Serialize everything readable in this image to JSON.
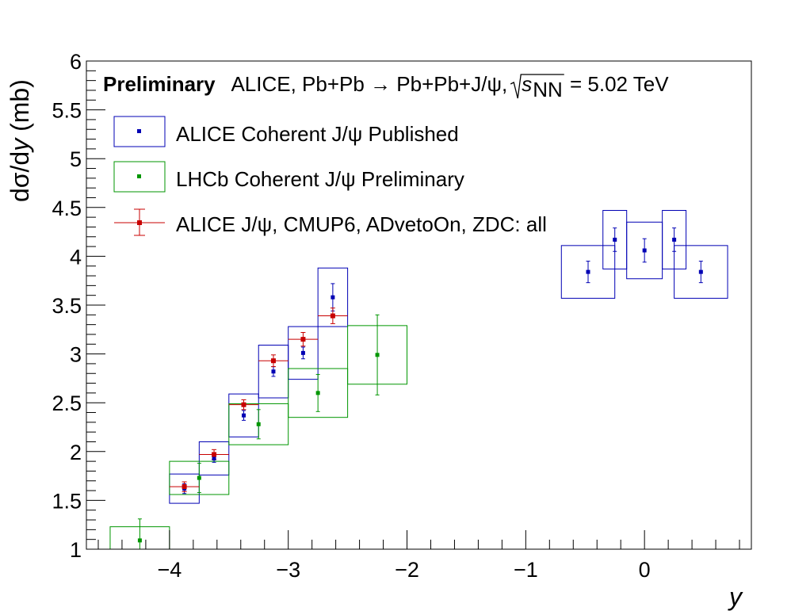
{
  "chart_data": {
    "type": "scatter",
    "header": {
      "bold": "Preliminary",
      "prefix": "ALICE, Pb+Pb → Pb+Pb+J/ψ, ",
      "sqrt_var": "s",
      "sqrt_sub": "NN",
      "suffix": " = 5.02 TeV"
    },
    "xlabel": "y",
    "ylabel_prefix": "dσ/d",
    "ylabel_var": "y",
    "ylabel_suffix": " (mb)",
    "xlim": [
      -4.7,
      0.9
    ],
    "ylim": [
      1,
      6
    ],
    "x_ticks": [
      -4,
      -3,
      -2,
      -1,
      0
    ],
    "x_tick_labels": [
      "−4",
      "−3",
      "−2",
      "−1",
      "0"
    ],
    "y_ticks": [
      1,
      1.5,
      2,
      2.5,
      3,
      3.5,
      4,
      4.5,
      5,
      5.5,
      6
    ],
    "y_tick_labels": [
      "1",
      "1.5",
      "2",
      "2.5",
      "3",
      "3.5",
      "4",
      "4.5",
      "5",
      "5.5",
      "6"
    ],
    "legend_placement": "top-left",
    "colors": {
      "alice_published": "#0000b4",
      "lhcb": "#009600",
      "alice_new": "#c80000"
    },
    "series": [
      {
        "name": "ALICE Coherent J/ψ Published",
        "key": "alice_published",
        "style": "box",
        "points": [
          {
            "x": -3.875,
            "y": 1.62,
            "ex": 0.125,
            "stat": 0.05,
            "sys": 0.15
          },
          {
            "x": -3.625,
            "y": 1.93,
            "ex": 0.125,
            "stat": 0.04,
            "sys": 0.17
          },
          {
            "x": -3.375,
            "y": 2.37,
            "ex": 0.125,
            "stat": 0.05,
            "sys": 0.22
          },
          {
            "x": -3.125,
            "y": 2.82,
            "ex": 0.125,
            "stat": 0.05,
            "sys": 0.27
          },
          {
            "x": -2.875,
            "y": 3.01,
            "ex": 0.125,
            "stat": 0.06,
            "sys": 0.27
          },
          {
            "x": -2.625,
            "y": 3.58,
            "ex": 0.125,
            "stat": 0.14,
            "sys": 0.3
          },
          {
            "x": -0.475,
            "y": 3.84,
            "ex": 0.225,
            "stat": 0.11,
            "sys": 0.27
          },
          {
            "x": -0.25,
            "y": 4.17,
            "ex": 0.1,
            "stat": 0.12,
            "sys": 0.3
          },
          {
            "x": 0.0,
            "y": 4.06,
            "ex": 0.15,
            "stat": 0.12,
            "sys": 0.29
          },
          {
            "x": 0.25,
            "y": 4.17,
            "ex": 0.1,
            "stat": 0.12,
            "sys": 0.3
          },
          {
            "x": 0.475,
            "y": 3.84,
            "ex": 0.225,
            "stat": 0.11,
            "sys": 0.27
          }
        ]
      },
      {
        "name": "LHCb Coherent J/ψ Preliminary",
        "key": "lhcb",
        "style": "box",
        "points": [
          {
            "x": -4.25,
            "y": 1.09,
            "ex": 0.25,
            "stat": 0.22,
            "sys": 0.14
          },
          {
            "x": -3.75,
            "y": 1.73,
            "ex": 0.25,
            "stat": 0.15,
            "sys": 0.17
          },
          {
            "x": -3.25,
            "y": 2.28,
            "ex": 0.25,
            "stat": 0.15,
            "sys": 0.21
          },
          {
            "x": -2.75,
            "y": 2.6,
            "ex": 0.25,
            "stat": 0.19,
            "sys": 0.25
          },
          {
            "x": -2.25,
            "y": 2.99,
            "ex": 0.25,
            "stat": 0.41,
            "sys": 0.3
          }
        ]
      },
      {
        "name": "ALICE J/ψ, CMUP6, ADvetoOn, ZDC: all",
        "key": "alice_new",
        "style": "xerr",
        "points": [
          {
            "x": -3.875,
            "y": 1.64,
            "ex": 0.125,
            "stat": 0.05
          },
          {
            "x": -3.625,
            "y": 1.97,
            "ex": 0.125,
            "stat": 0.05
          },
          {
            "x": -3.375,
            "y": 2.48,
            "ex": 0.125,
            "stat": 0.05
          },
          {
            "x": -3.125,
            "y": 2.93,
            "ex": 0.125,
            "stat": 0.06
          },
          {
            "x": -2.875,
            "y": 3.15,
            "ex": 0.125,
            "stat": 0.07
          },
          {
            "x": -2.625,
            "y": 3.39,
            "ex": 0.125,
            "stat": 0.08
          }
        ]
      }
    ]
  }
}
